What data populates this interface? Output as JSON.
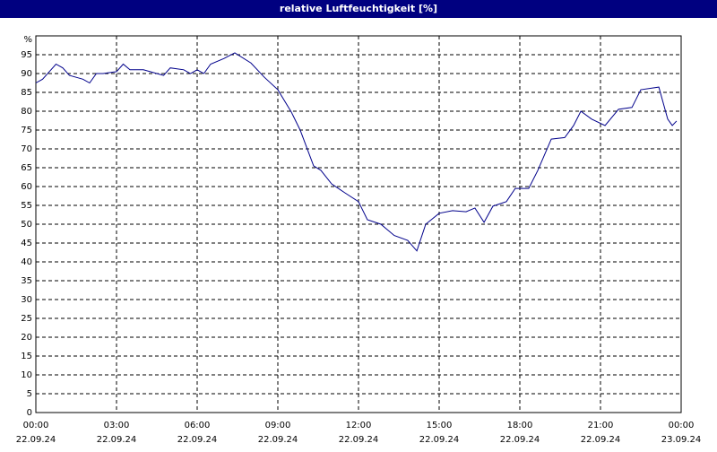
{
  "chart_data": {
    "type": "line",
    "title": "relative Luftfeuchtigkeit [%]",
    "y_label": "%",
    "x": [
      0,
      0.25,
      0.5,
      0.75,
      1.0,
      1.25,
      1.5,
      1.75,
      2.0,
      2.25,
      2.5,
      3.0,
      3.25,
      3.5,
      4.0,
      4.5,
      4.75,
      5.0,
      5.5,
      5.75,
      6.0,
      6.25,
      6.5,
      7.0,
      7.4,
      8.0,
      8.5,
      9.0,
      9.5,
      9.83,
      10.33,
      10.6,
      11.0,
      11.5,
      12.0,
      12.33,
      12.83,
      13.33,
      13.83,
      14.17,
      14.5,
      15.0,
      15.5,
      16.0,
      16.33,
      16.67,
      17.0,
      17.5,
      17.83,
      18.33,
      18.67,
      19.17,
      19.67,
      20.0,
      20.27,
      20.67,
      21.17,
      21.67,
      22.17,
      22.5,
      23.17,
      23.5,
      23.67,
      23.83
    ],
    "series": [
      {
        "name": "relative Luftfeuchtigkeit",
        "color": "#00008b",
        "values": [
          87.5,
          88.5,
          90.5,
          92.5,
          91.5,
          89.5,
          89,
          88.5,
          87.5,
          90,
          90,
          90.5,
          92.5,
          91,
          91,
          90,
          89.5,
          91.5,
          91,
          90,
          91,
          90,
          92.5,
          94,
          95.5,
          92.8,
          89,
          85.7,
          79.8,
          75,
          65.5,
          64.3,
          60.7,
          58.3,
          56,
          51.2,
          50,
          47,
          45.7,
          42.9,
          50,
          52.9,
          53.6,
          53.3,
          54.3,
          50.5,
          54.8,
          56,
          59.5,
          59.5,
          64.3,
          72.6,
          73,
          76.2,
          80,
          77.9,
          76.2,
          80.5,
          81,
          85.7,
          86.4,
          77.9,
          76.2,
          77.4
        ]
      }
    ],
    "xlim": [
      0,
      24
    ],
    "xticks": [
      {
        "value": 0,
        "label": "00:00"
      },
      {
        "value": 3,
        "label": "03:00"
      },
      {
        "value": 6,
        "label": "06:00"
      },
      {
        "value": 9,
        "label": "09:00"
      },
      {
        "value": 12,
        "label": "12:00"
      },
      {
        "value": 15,
        "label": "15:00"
      },
      {
        "value": 18,
        "label": "18:00"
      },
      {
        "value": 21,
        "label": "21:00"
      },
      {
        "value": 24,
        "label": "00:00"
      }
    ],
    "xtick_dates": [
      "22.09.24",
      "22.09.24",
      "22.09.24",
      "22.09.24",
      "22.09.24",
      "22.09.24",
      "22.09.24",
      "22.09.24",
      "23.09.24"
    ],
    "ylim": [
      0,
      100
    ],
    "yticks": [
      0,
      5,
      10,
      15,
      20,
      25,
      30,
      35,
      40,
      45,
      50,
      55,
      60,
      65,
      70,
      75,
      80,
      85,
      90,
      95
    ],
    "grid": true
  }
}
